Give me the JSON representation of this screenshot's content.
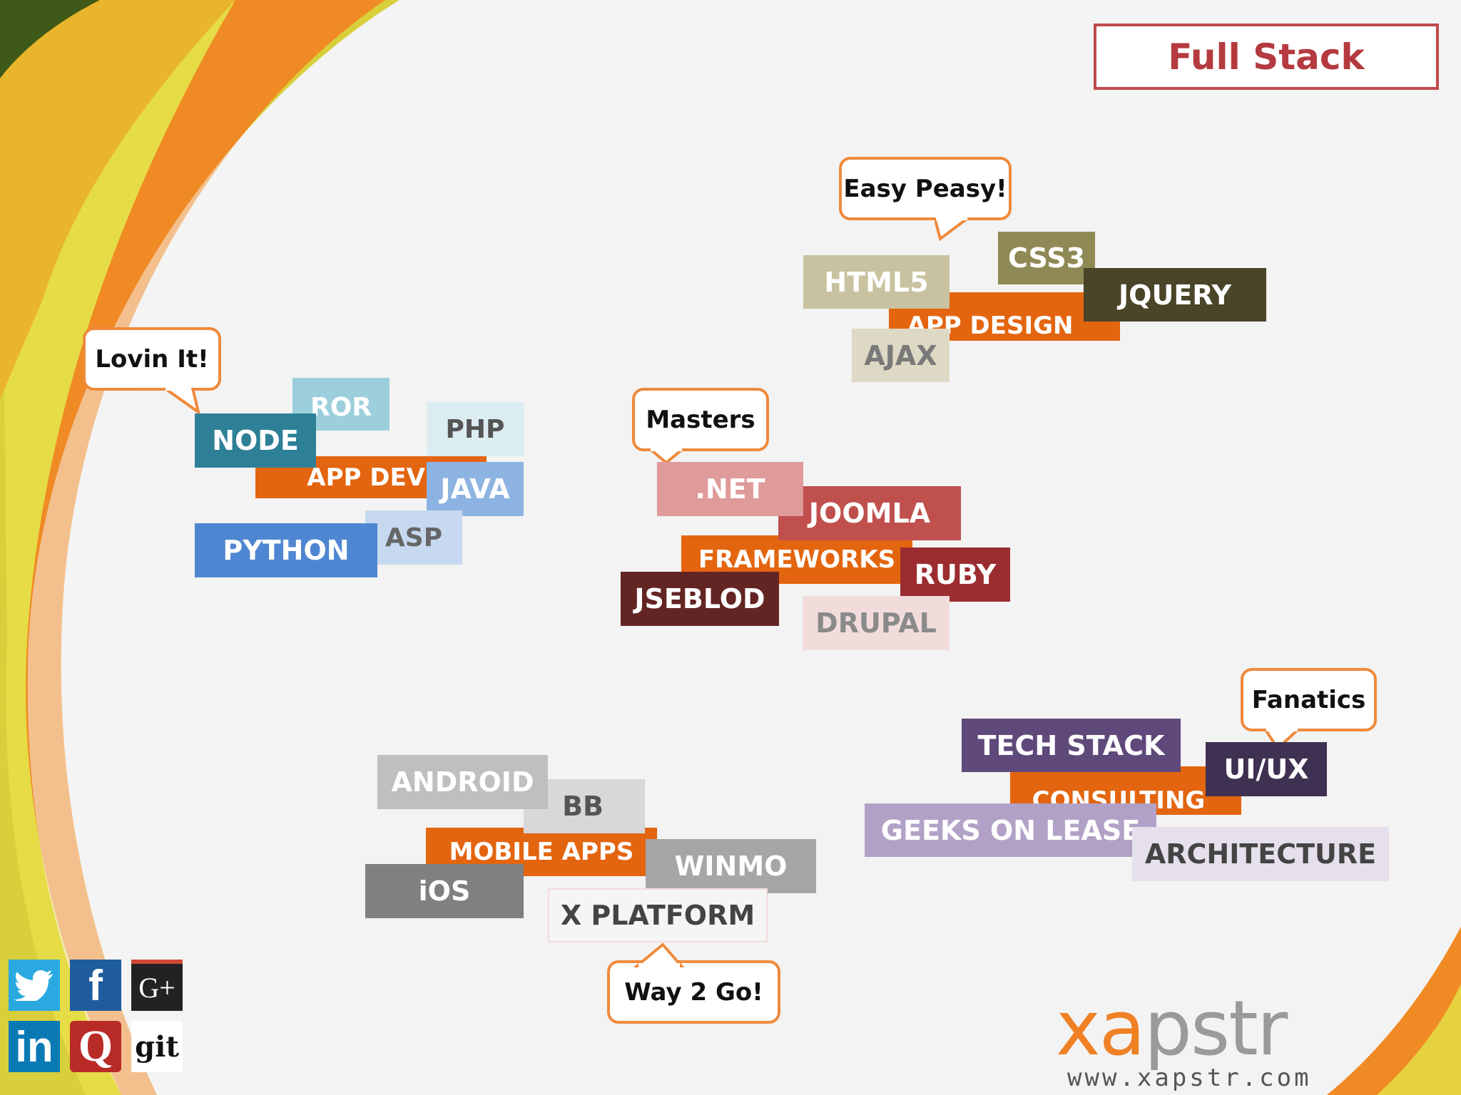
{
  "header": {
    "title": "Full Stack"
  },
  "colors": {
    "orange": "#e3650f",
    "bubble_border": "#ef8a3c",
    "title_red": "#b43a3f"
  },
  "groups": {
    "app_dev": {
      "bubble": "Lovin It!",
      "center": "APP DEV",
      "tags": {
        "ror": "ROR",
        "node": "NODE",
        "php": "PHP",
        "java": "JAVA",
        "python": "PYTHON",
        "asp": "ASP"
      }
    },
    "app_design": {
      "bubble": "Easy Peasy!",
      "center": "APP DESIGN",
      "tags": {
        "html5": "HTML5",
        "css3": "CSS3",
        "jquery": "JQUERY",
        "ajax": "AJAX"
      }
    },
    "frameworks": {
      "bubble": "Masters",
      "center": "FRAMEWORKS",
      "tags": {
        "dotnet": ".NET",
        "joomla": "JOOMLA",
        "ruby": "RUBY",
        "jseblod": "JSEBLOD",
        "drupal": "DRUPAL"
      }
    },
    "mobile_apps": {
      "bubble": "Way 2 Go!",
      "center": "MOBILE APPS",
      "tags": {
        "android": "ANDROID",
        "bb": "BB",
        "winmo": "WINMO",
        "ios": "iOS",
        "xplatform": "X PLATFORM"
      }
    },
    "consulting": {
      "bubble": "Fanatics",
      "center": "CONSULTING",
      "tags": {
        "techstack": "TECH STACK",
        "uiux": "UI/UX",
        "geeks": "GEEKS ON LEASE",
        "architecture": "ARCHITECTURE"
      }
    }
  },
  "social": {
    "twitter": {
      "icon": "twitter-icon"
    },
    "facebook": {
      "icon": "facebook-icon",
      "glyph": "f"
    },
    "gplus": {
      "icon": "google-plus-icon",
      "glyph": "G+"
    },
    "linkedin": {
      "icon": "linkedin-icon",
      "glyph": "in"
    },
    "quora": {
      "icon": "quora-icon",
      "glyph": "Q"
    },
    "git": {
      "icon": "git-icon",
      "glyph": "git"
    }
  },
  "logo": {
    "wordmark": "xapstr",
    "url": "www.xapstr.com"
  }
}
